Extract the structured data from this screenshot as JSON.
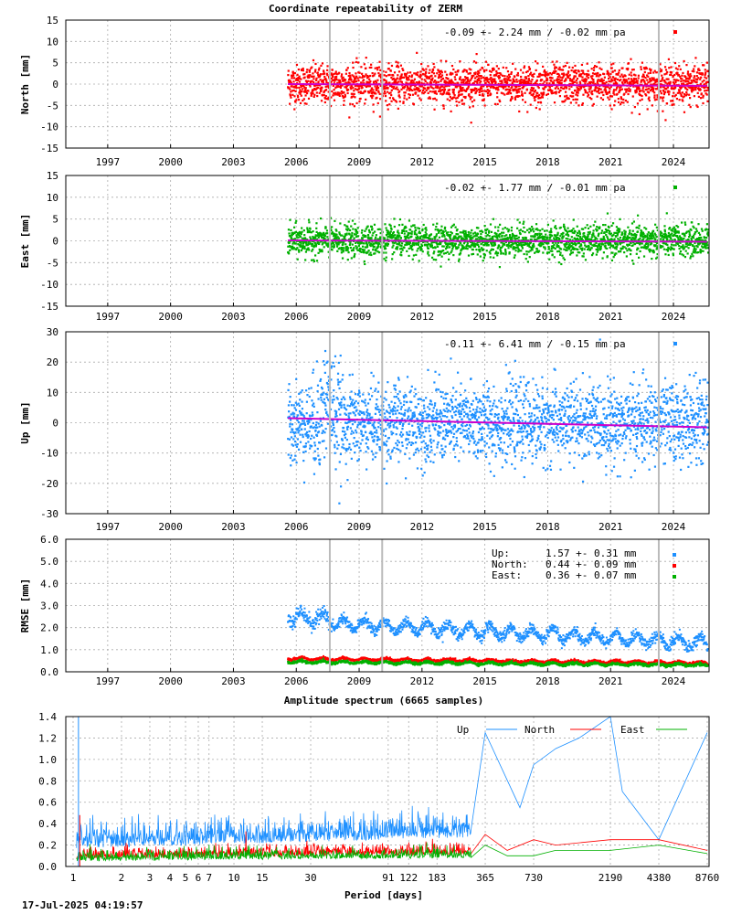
{
  "chart_data": [
    {
      "type": "scatter",
      "title": "Coordinate repeatability of ZERM",
      "ylabel": "North [mm]",
      "ylim": [
        -15,
        15
      ],
      "yticks": [
        15,
        10,
        5,
        0,
        -5,
        -10,
        -15
      ],
      "xlim": [
        1995,
        2025.7
      ],
      "xticks": [
        1997,
        2000,
        2003,
        2006,
        2009,
        2012,
        2015,
        2018,
        2021,
        2024
      ],
      "data_start": 2005.6,
      "color": "#ff0000",
      "spread": 2.24,
      "trend": [
        [
          2005.6,
          0.0
        ],
        [
          2025.6,
          -0.4
        ]
      ],
      "stats": "-0.09 +- 2.24 mm / -0.02 mm pa",
      "breaks": [
        2007.6,
        2010.1,
        2023.3
      ]
    },
    {
      "type": "scatter",
      "title": "",
      "ylabel": "East [mm]",
      "ylim": [
        -15,
        15
      ],
      "yticks": [
        15,
        10,
        5,
        0,
        -5,
        -10,
        -15
      ],
      "xlim": [
        1995,
        2025.7
      ],
      "xticks": [
        1997,
        2000,
        2003,
        2006,
        2009,
        2012,
        2015,
        2018,
        2021,
        2024
      ],
      "data_start": 2005.6,
      "color": "#00b000",
      "spread": 1.77,
      "trend": [
        [
          2005.6,
          0.1
        ],
        [
          2025.6,
          -0.2
        ]
      ],
      "stats": "-0.02 +- 1.77 mm / -0.01 mm pa",
      "breaks": [
        2007.6,
        2010.1,
        2023.3
      ]
    },
    {
      "type": "scatter",
      "title": "",
      "ylabel": "Up [mm]",
      "ylim": [
        -30,
        30
      ],
      "yticks": [
        30,
        20,
        10,
        0,
        -10,
        -20,
        -30
      ],
      "xlim": [
        1995,
        2025.7
      ],
      "xticks": [
        1997,
        2000,
        2003,
        2006,
        2009,
        2012,
        2015,
        2018,
        2021,
        2024
      ],
      "data_start": 2005.6,
      "color": "#1e90ff",
      "spread": 6.41,
      "trend": [
        [
          2005.6,
          1.5
        ],
        [
          2025.6,
          -1.5
        ]
      ],
      "stats": "-0.11 +- 6.41 mm / -0.15 mm pa",
      "breaks": [
        2007.6,
        2010.1,
        2023.3
      ]
    },
    {
      "type": "scatter",
      "title": "",
      "ylabel": "RMSE [mm]",
      "ylim": [
        0,
        6
      ],
      "yticks": [
        "6.0",
        "5.0",
        "4.0",
        "3.0",
        "2.0",
        "1.0",
        "0.0"
      ],
      "xlim": [
        1995,
        2025.7
      ],
      "xticks": [
        1997,
        2000,
        2003,
        2006,
        2009,
        2012,
        2015,
        2018,
        2021,
        2024
      ],
      "data_start": 2005.6,
      "breaks": [
        2007.6,
        2010.1,
        2023.3
      ],
      "series": [
        {
          "name": "Up",
          "color": "#1e90ff",
          "level_start": 2.3,
          "level_end": 1.3
        },
        {
          "name": "North",
          "color": "#ff0000",
          "level_start": 0.6,
          "level_end": 0.4
        },
        {
          "name": "East",
          "color": "#00b000",
          "level_start": 0.45,
          "level_end": 0.3
        }
      ],
      "legend": [
        {
          "label": "Up:",
          "value": "1.57 +- 0.31 mm"
        },
        {
          "label": "North:",
          "value": "0.44 +- 0.09 mm"
        },
        {
          "label": "East:",
          "value": "0.36 +- 0.07 mm"
        }
      ]
    },
    {
      "type": "line",
      "title": "Amplitude spectrum (6665 samples)",
      "xlabel": "Period [days]",
      "ylim": [
        0,
        1.4
      ],
      "yticks": [
        "1.4",
        "1.2",
        "1.0",
        "0.8",
        "0.6",
        "0.4",
        "0.2",
        "0.0"
      ],
      "xscale": "log",
      "xlim": [
        1,
        8760
      ],
      "xticks": [
        "1",
        "2",
        "3",
        "4",
        "5",
        "6",
        "7",
        "10",
        "15",
        "30",
        "91",
        "122",
        "183",
        "365",
        "730",
        "2190",
        "4380",
        "8760"
      ],
      "series": [
        {
          "name": "Up",
          "color": "#1e90ff",
          "peaks": [
            [
              365,
              1.25
            ],
            [
              600,
              0.55
            ],
            [
              730,
              0.95
            ],
            [
              1000,
              1.1
            ],
            [
              1400,
              1.2
            ],
            [
              2190,
              1.4
            ],
            [
              2600,
              0.7
            ],
            [
              4380,
              0.25
            ],
            [
              8760,
              1.25
            ]
          ]
        },
        {
          "name": "North",
          "color": "#ff0000",
          "peaks": [
            [
              365,
              0.3
            ],
            [
              500,
              0.15
            ],
            [
              730,
              0.25
            ],
            [
              1000,
              0.2
            ],
            [
              2190,
              0.25
            ],
            [
              4380,
              0.25
            ],
            [
              8760,
              0.15
            ]
          ]
        },
        {
          "name": "East",
          "color": "#00b000",
          "peaks": [
            [
              365,
              0.2
            ],
            [
              500,
              0.1
            ],
            [
              730,
              0.1
            ],
            [
              1000,
              0.15
            ],
            [
              2190,
              0.15
            ],
            [
              4380,
              0.2
            ],
            [
              8760,
              0.12
            ]
          ]
        }
      ]
    }
  ],
  "footer": {
    "timestamp": "17-Jul-2025 04:19:57"
  }
}
